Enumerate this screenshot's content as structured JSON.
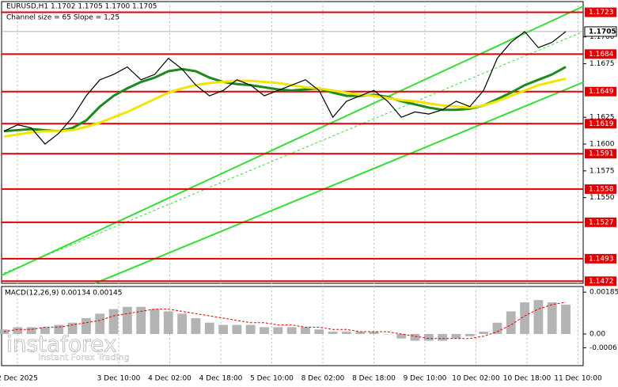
{
  "chart_data": {
    "type": "line",
    "symbol_header": "EURUSD,H1  1.1702 1.1705 1.1700 1.1705",
    "subtitle": "Channel size = 65 Slope = 1,25",
    "series": [
      {
        "name": "Price",
        "color": "#000000",
        "values": [
          1.1612,
          1.1618,
          1.1615,
          1.16,
          1.161,
          1.1625,
          1.1645,
          1.166,
          1.1665,
          1.1672,
          1.166,
          1.1665,
          1.168,
          1.167,
          1.1655,
          1.1645,
          1.165,
          1.166,
          1.1655,
          1.1645,
          1.165,
          1.1655,
          1.166,
          1.165,
          1.1625,
          1.164,
          1.1645,
          1.165,
          1.164,
          1.1625,
          1.163,
          1.1628,
          1.1632,
          1.164,
          1.1635,
          1.165,
          1.168,
          1.1695,
          1.1705,
          1.169,
          1.1695,
          1.1705
        ]
      },
      {
        "name": "MA slow",
        "color": "#1e8a1e",
        "values": [
          1.1612,
          1.1613,
          1.1614,
          1.1613,
          1.1612,
          1.1615,
          1.1622,
          1.1635,
          1.1645,
          1.1652,
          1.1658,
          1.1662,
          1.1668,
          1.167,
          1.1668,
          1.1662,
          1.1658,
          1.1656,
          1.1655,
          1.1653,
          1.1651,
          1.165,
          1.1651,
          1.1652,
          1.1648,
          1.1645,
          1.1645,
          1.1646,
          1.1644,
          1.164,
          1.1637,
          1.1634,
          1.1632,
          1.1632,
          1.1633,
          1.1636,
          1.1642,
          1.1648,
          1.1655,
          1.166,
          1.1665,
          1.1672
        ]
      },
      {
        "name": "MA fast",
        "color": "#f2e600",
        "values": [
          1.1607,
          1.1609,
          1.1611,
          1.1612,
          1.1612,
          1.1613,
          1.1616,
          1.162,
          1.1625,
          1.163,
          1.1636,
          1.1642,
          1.1648,
          1.1652,
          1.1655,
          1.1657,
          1.1658,
          1.1659,
          1.1659,
          1.1658,
          1.1657,
          1.1655,
          1.1653,
          1.1652,
          1.165,
          1.1648,
          1.1646,
          1.1645,
          1.1643,
          1.1641,
          1.164,
          1.1638,
          1.1636,
          1.1635,
          1.1634,
          1.1636,
          1.164,
          1.1645,
          1.165,
          1.1655,
          1.1658,
          1.1661
        ]
      }
    ],
    "ylim": [
      1.147,
      1.1733
    ],
    "yticks": [
      {
        "value": 1.17,
        "label": "1.1700"
      },
      1.1675,
      1.1625,
      {
        "value": 1.16,
        "label": "1.1600"
      },
      1.1575,
      {
        "value": 1.155,
        "label": "1.1550"
      }
    ],
    "current_price": 1.1705,
    "levels": [
      1.1723,
      1.1684,
      1.1649,
      1.1619,
      1.1591,
      1.1558,
      1.1527,
      1.1493,
      1.1472
    ],
    "level_color": "#e00000",
    "x_labels": [
      "2 Dec 2025",
      "3 Dec 10:00",
      "4 Dec 02:00",
      "4 Dec 18:00",
      "5 Dec 10:00",
      "8 Dec 02:00",
      "8 Dec 18:00",
      "9 Dec 10:00",
      "10 Dec 02:00",
      "10 Dec 18:00",
      "11 Dec 10:00"
    ],
    "macd": {
      "title": "MACD(12,26,9) 0.00134 0.00145",
      "histogram": {
        "name": "MACD",
        "color": "#b4b4b4",
        "values": [
          0.0002,
          0.0003,
          0.0003,
          0.0003,
          0.0004,
          0.0005,
          0.0007,
          0.0009,
          0.0011,
          0.0012,
          0.0012,
          0.0011,
          0.001,
          0.0009,
          0.0007,
          0.0005,
          0.0004,
          0.0004,
          0.0004,
          0.0003,
          0.0003,
          0.0003,
          0.0003,
          0.0002,
          0.0001,
          0.0001,
          0.0001,
          0.0001,
          0.0,
          -0.0002,
          -0.0003,
          -0.0003,
          -0.0003,
          -0.0002,
          -0.0001,
          0.0001,
          0.0005,
          0.001,
          0.0014,
          0.0015,
          0.0014,
          0.0013
        ]
      },
      "signal": {
        "name": "Signal",
        "color": "#e00000",
        "values": [
          0.0001,
          0.0002,
          0.0002,
          0.0003,
          0.0003,
          0.0004,
          0.0005,
          0.0006,
          0.0008,
          0.0009,
          0.001,
          0.0011,
          0.0011,
          0.001,
          0.0009,
          0.0008,
          0.0007,
          0.0006,
          0.0005,
          0.0005,
          0.0004,
          0.0004,
          0.0003,
          0.0003,
          0.0002,
          0.0002,
          0.0001,
          0.0001,
          0.0001,
          0.0,
          -0.0001,
          -0.0002,
          -0.0002,
          -0.0002,
          -0.0002,
          -0.0001,
          0.0001,
          0.0004,
          0.0008,
          0.0011,
          0.0013,
          0.0014
        ]
      },
      "ylim": [
        -0.0014,
        0.0021
      ],
      "yticks": [
        0.00185,
        {
          "value": 0,
          "label": "0.00"
        },
        -0.00061
      ]
    },
    "watermark": {
      "brand": "instaforex",
      "tagline": "Instant Forex Trading"
    }
  }
}
